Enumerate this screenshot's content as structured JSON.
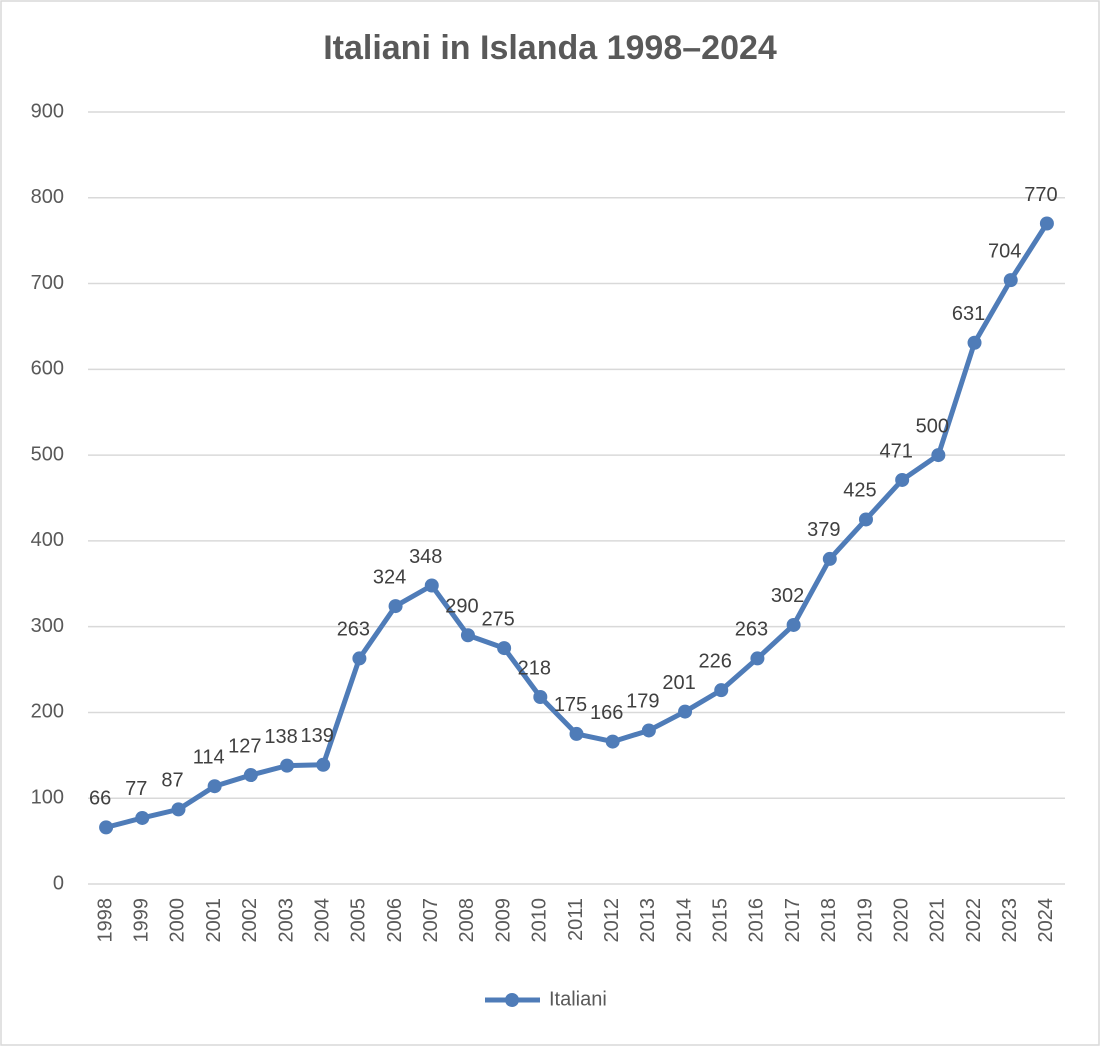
{
  "chart_data": {
    "type": "line",
    "title": "Italiani in Islanda 1998–2024",
    "categories": [
      "1998",
      "1999",
      "2000",
      "2001",
      "2002",
      "2003",
      "2004",
      "2005",
      "2006",
      "2007",
      "2008",
      "2009",
      "2010",
      "2011",
      "2012",
      "2013",
      "2014",
      "2015",
      "2016",
      "2017",
      "2018",
      "2019",
      "2020",
      "2021",
      "2022",
      "2023",
      "2024"
    ],
    "series": [
      {
        "name": "Italiani",
        "color": "#4f7cb8",
        "values": [
          66,
          77,
          87,
          114,
          127,
          138,
          139,
          263,
          324,
          348,
          290,
          275,
          218,
          175,
          166,
          179,
          201,
          226,
          263,
          302,
          379,
          425,
          471,
          500,
          631,
          704,
          770
        ]
      }
    ],
    "ylim": [
      0,
      900
    ],
    "yticks": [
      0,
      100,
      200,
      300,
      400,
      500,
      600,
      700,
      800,
      900
    ],
    "grid": true,
    "legend": "bottom"
  }
}
